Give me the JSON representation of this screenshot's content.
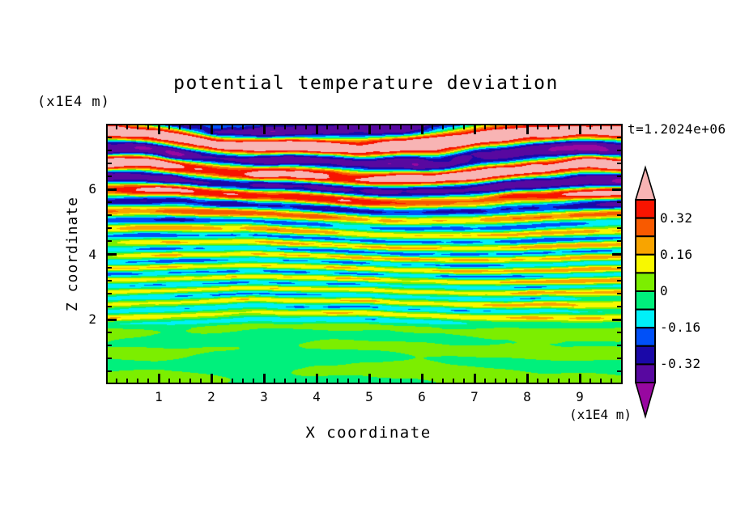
{
  "title": "potential temperature deviation",
  "timestamp": "t=1.2024e+06",
  "axes": {
    "x": {
      "label": "X coordinate",
      "unit": "(x1E4 m)",
      "tick_labels": [
        "1",
        "2",
        "3",
        "4",
        "5",
        "6",
        "7",
        "8",
        "9"
      ],
      "tick_values": [
        1,
        2,
        3,
        4,
        5,
        6,
        7,
        8,
        9
      ],
      "minor_interval": 0.2,
      "range": [
        0.03,
        9.78
      ]
    },
    "y": {
      "label": "Z coordinate",
      "unit": "(x1E4 m)",
      "tick_labels": [
        "2",
        "4",
        "6"
      ],
      "tick_values": [
        2,
        4,
        6
      ],
      "minor_interval": 0.4,
      "range": [
        0.05,
        7.95
      ]
    }
  },
  "colorbar": {
    "labels": [
      "0.32",
      "0.16",
      "0",
      "-0.16",
      "-0.32"
    ],
    "label_values": [
      0.32,
      0.16,
      0,
      -0.16,
      -0.32
    ],
    "interval": 0.08,
    "range": [
      -0.4,
      0.4
    ],
    "box_colors_top_to_bottom": [
      "#F81400",
      "#F85A00",
      "#F8A400",
      "#F8F800",
      "#7CEE00",
      "#00F07C",
      "#00F0F8",
      "#0050F8",
      "#1A08A8",
      "#5808A0"
    ],
    "arrow_top_color": "#F8B4B4",
    "arrow_bottom_color": "#9808A0",
    "outline_color": "#000000"
  },
  "chart_data": {
    "type": "heatmap",
    "subtype": "filled_contour",
    "title": "potential temperature deviation",
    "xlabel": "X coordinate",
    "ylabel": "Z coordinate",
    "axis_unit": "(x1E4 m)",
    "annotation": "t=1.2024e+06",
    "x_range": [
      0.03,
      9.78
    ],
    "y_range": [
      0.05,
      7.95
    ],
    "levels": [
      -0.4,
      -0.32,
      -0.24,
      -0.16,
      -0.08,
      0,
      0.08,
      0.16,
      0.24,
      0.32,
      0.4
    ],
    "labeled_levels": [
      0.32,
      0.16,
      0,
      -0.16,
      -0.32
    ],
    "colors_low_to_high": [
      "#9808A0",
      "#5808A0",
      "#1A08A8",
      "#0050F8",
      "#00F0F8",
      "#00F07C",
      "#7CEE00",
      "#F8F800",
      "#F8A400",
      "#F85A00",
      "#F81400",
      "#F8B4B4"
    ],
    "legend_position": "right",
    "grid": false,
    "pattern_description": "Horizontally stratified wave field: smooth near-zero green/chartreuse blobs below z=2, thin horizontal streaks (yellow/cyan/orange/blue) for z=2-5 growing in amplitude with height, and thick saturated bands (pink >0.4, red, navy, violet <-0.32) between z=5.5 and the top at z=7.95"
  }
}
